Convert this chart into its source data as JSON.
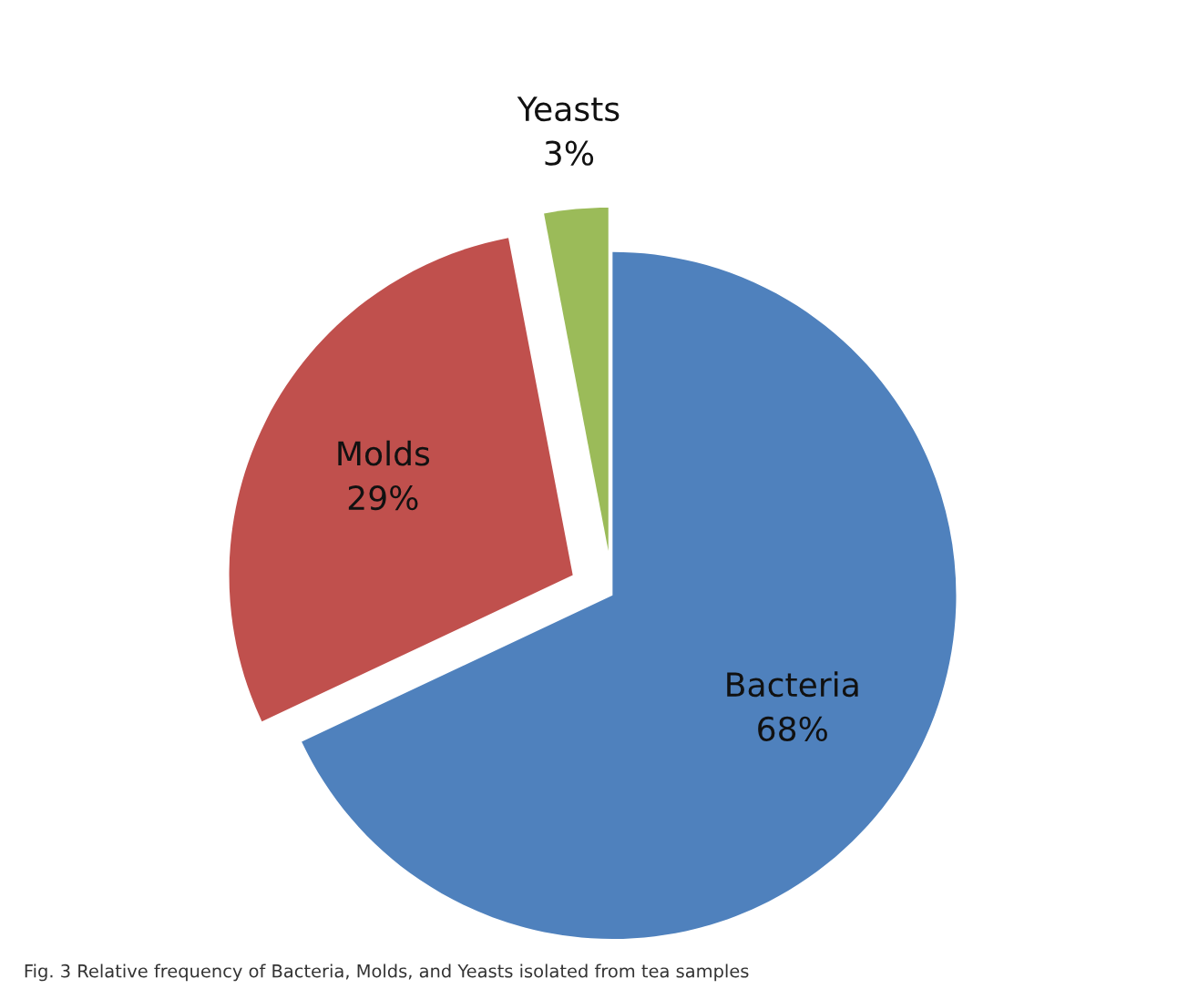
{
  "chart_data": {
    "type": "pie",
    "categories": [
      "Bacteria",
      "Molds",
      "Yeasts"
    ],
    "values": [
      68,
      29,
      3
    ],
    "colors": [
      "#4f81bd",
      "#c0504d",
      "#9bbb59"
    ],
    "value_labels": [
      "68%",
      "29%",
      "3%"
    ],
    "annotations": [
      "Fig. 3 Relative frequency of Bacteria, Molds, and Yeasts isolated from tea samples"
    ]
  }
}
